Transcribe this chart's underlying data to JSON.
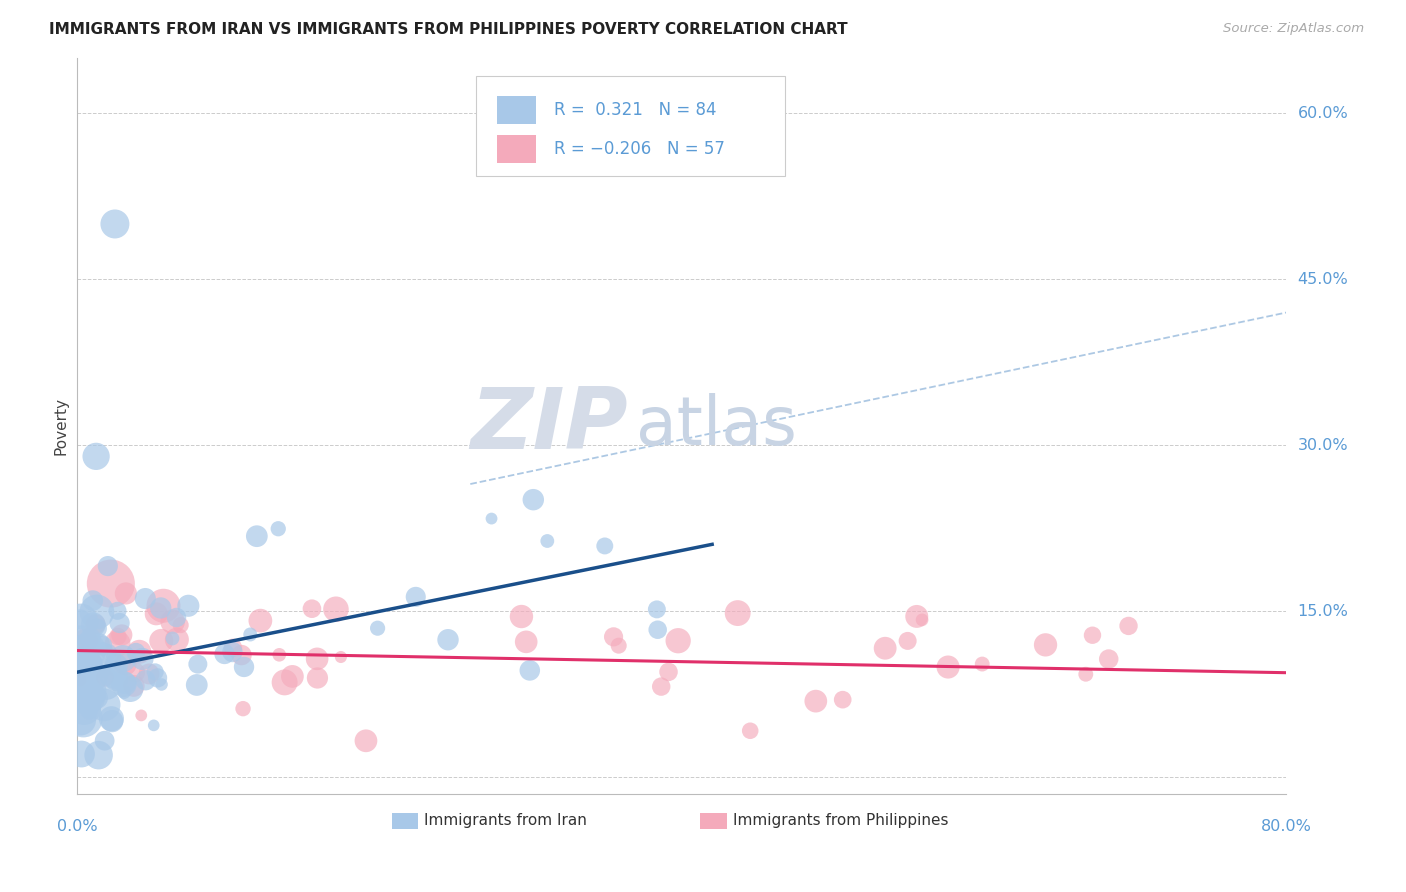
{
  "title": "IMMIGRANTS FROM IRAN VS IMMIGRANTS FROM PHILIPPINES POVERTY CORRELATION CHART",
  "source": "Source: ZipAtlas.com",
  "ylabel": "Poverty",
  "xlim": [
    0.0,
    0.8
  ],
  "ylim": [
    -0.015,
    0.65
  ],
  "iran_R": 0.321,
  "iran_N": 84,
  "phil_R": -0.206,
  "phil_N": 57,
  "iran_color": "#a8c8e8",
  "phil_color": "#f4aabb",
  "iran_line_color": "#1a4f8a",
  "phil_line_color": "#e0306a",
  "dashed_line_color": "#99bbdd",
  "background_color": "#ffffff",
  "legend_label_iran": "Immigrants from Iran",
  "legend_label_phil": "Immigrants from Philippines",
  "ytick_positions": [
    0.0,
    0.15,
    0.3,
    0.45,
    0.6
  ],
  "ytick_labels": [
    "",
    "15.0%",
    "30.0%",
    "45.0%",
    "60.0%"
  ],
  "grid_color": "#cccccc",
  "title_fontsize": 11,
  "axis_color": "#5b9bd5",
  "source_color": "#aaaaaa",
  "xtick_labels": [
    "0.0%",
    "80.0%"
  ]
}
